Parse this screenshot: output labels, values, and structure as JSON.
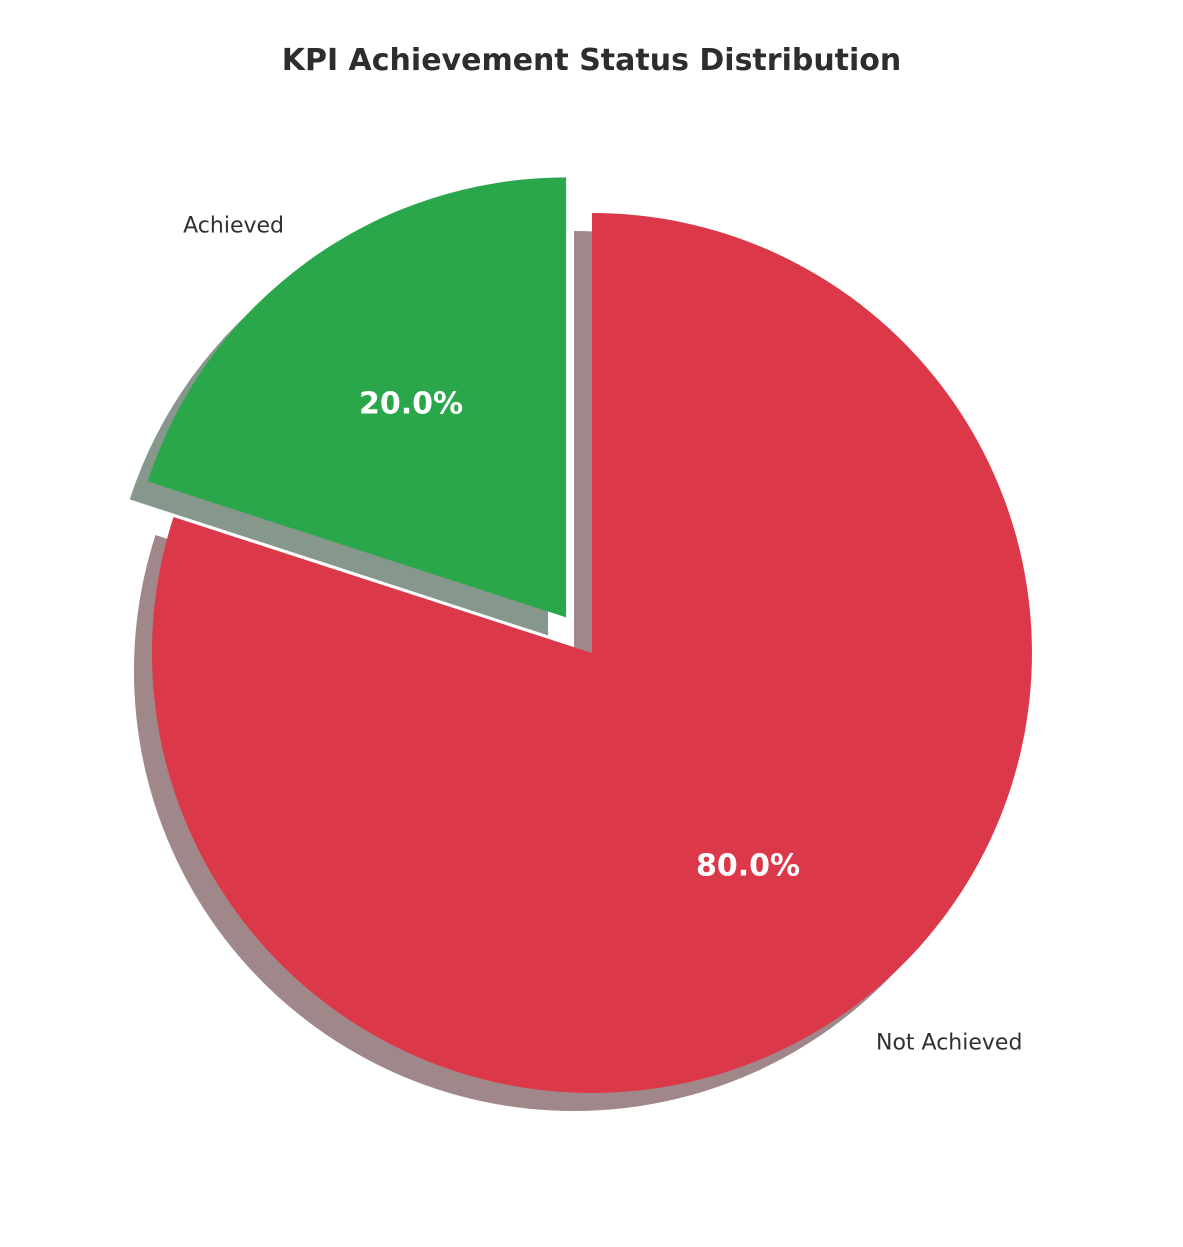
{
  "chart_data": {
    "type": "pie",
    "title": "KPI Achievement Status Distribution",
    "slices": [
      {
        "label": "Achieved",
        "value": 20.0,
        "pct_label": "20.0%",
        "color": "#2aa64b",
        "explode": 0.1
      },
      {
        "label": "Not Achieved",
        "value": 80.0,
        "pct_label": "80.0%",
        "color": "#db3949",
        "explode": 0.0
      }
    ],
    "start_angle": 90,
    "direction": "counterclockwise",
    "shadow": true,
    "legend": "none",
    "label_color": "#303030",
    "pct_color": "#ffffff",
    "title_color": "#2d2d2d",
    "background_color": "#ffffff"
  }
}
